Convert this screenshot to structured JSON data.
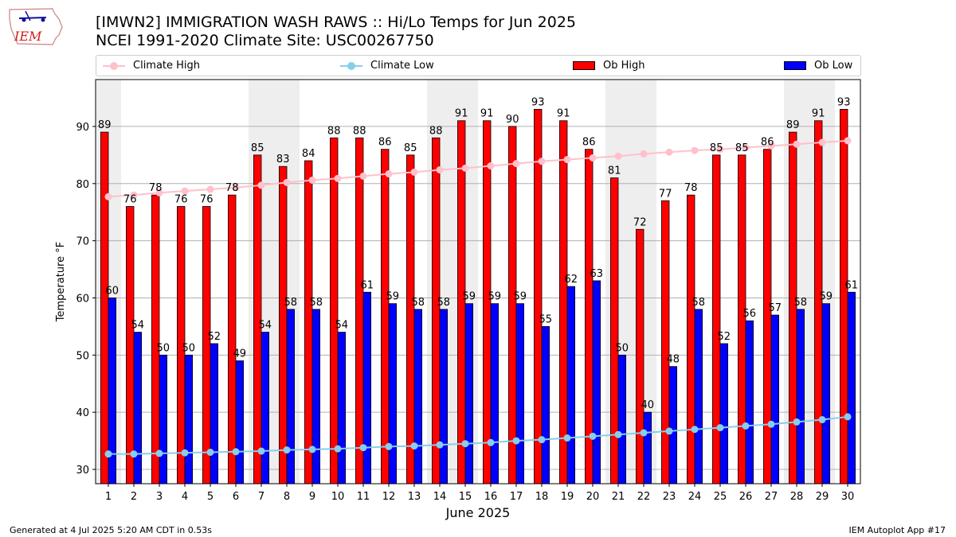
{
  "logo": {
    "text": "IEM"
  },
  "header": {
    "title": "[IMWN2] IMMIGRATION WASH RAWS :: Hi/Lo Temps for Jun 2025",
    "subtitle": "NCEI 1991-2020 Climate Site: USC00267750"
  },
  "legend": {
    "climate_high": "Climate High",
    "climate_low": "Climate Low",
    "ob_high": "Ob High",
    "ob_low": "Ob Low"
  },
  "footer": {
    "generated": "Generated at 4 Jul 2025 5:20 AM CDT in 0.53s",
    "app": "IEM Autoplot App #17"
  },
  "colors": {
    "ob_high": "#ff0000",
    "ob_low": "#0000ff",
    "climate_high": "#ffc0cb",
    "climate_low": "#87ceeb",
    "weekend_shade": "#eeeeee"
  },
  "chart_data": {
    "type": "bar",
    "xlabel": "June 2025",
    "ylabel": "Temperature °F",
    "ylim": [
      27.5,
      98.2
    ],
    "yticks": [
      30,
      40,
      50,
      60,
      70,
      80,
      90
    ],
    "grid": true,
    "legend_position": "top",
    "categories": [
      "1",
      "2",
      "3",
      "4",
      "5",
      "6",
      "7",
      "8",
      "9",
      "10",
      "11",
      "12",
      "13",
      "14",
      "15",
      "16",
      "17",
      "18",
      "19",
      "20",
      "21",
      "22",
      "23",
      "24",
      "25",
      "26",
      "27",
      "28",
      "29",
      "30"
    ],
    "shaded_days": [
      1,
      7,
      8,
      14,
      15,
      21,
      22,
      28,
      29
    ],
    "series": [
      {
        "name": "Ob High",
        "type": "bar",
        "values": [
          89,
          76,
          78,
          76,
          76,
          78,
          85,
          83,
          84,
          88,
          88,
          86,
          85,
          88,
          91,
          91,
          90,
          93,
          91,
          86,
          81,
          72,
          77,
          78,
          85,
          85,
          86,
          89,
          91,
          93
        ]
      },
      {
        "name": "Ob Low",
        "type": "bar",
        "values": [
          60,
          54,
          50,
          50,
          52,
          49,
          54,
          58,
          58,
          54,
          61,
          59,
          58,
          58,
          59,
          59,
          59,
          55,
          62,
          63,
          50,
          40,
          48,
          58,
          52,
          56,
          57,
          58,
          59,
          61
        ]
      },
      {
        "name": "Climate High",
        "type": "line",
        "values": [
          77.7,
          78.0,
          78.4,
          78.7,
          79.0,
          79.3,
          79.7,
          80.2,
          80.6,
          80.9,
          81.3,
          81.7,
          82.0,
          82.4,
          82.7,
          83.1,
          83.5,
          83.9,
          84.2,
          84.5,
          84.8,
          85.2,
          85.5,
          85.8,
          86.0,
          86.3,
          86.6,
          86.9,
          87.2,
          87.5
        ]
      },
      {
        "name": "Climate Low",
        "type": "line",
        "values": [
          32.7,
          32.7,
          32.8,
          32.9,
          33.0,
          33.1,
          33.2,
          33.4,
          33.5,
          33.6,
          33.8,
          34.0,
          34.1,
          34.3,
          34.5,
          34.7,
          35.0,
          35.2,
          35.5,
          35.8,
          36.1,
          36.4,
          36.7,
          37.0,
          37.3,
          37.6,
          37.9,
          38.3,
          38.7,
          39.2
        ]
      }
    ]
  }
}
